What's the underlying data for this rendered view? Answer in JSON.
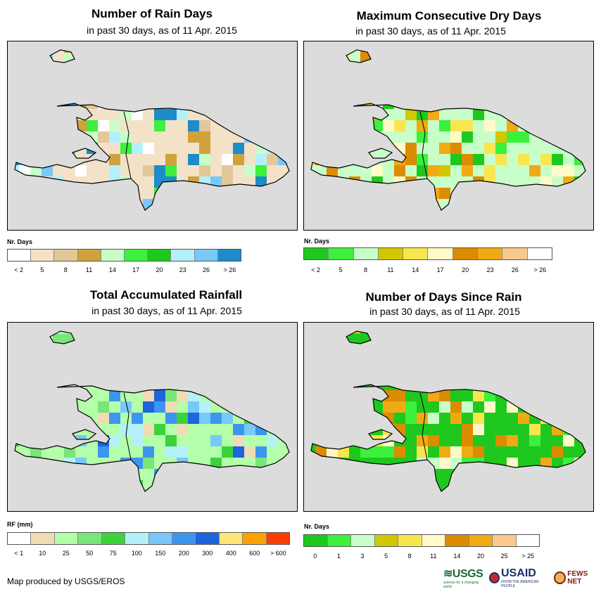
{
  "panels": [
    {
      "id": "rain-days",
      "title": "Number of Rain Days",
      "subtitle": "in past 30 days, as of 11 Apr. 2015",
      "legend_title": "Nr. Days",
      "legend_colors": [
        "#ffffff",
        "#f4e2c8",
        "#e2c898",
        "#cfa23c",
        "#c8ffc8",
        "#3cf03c",
        "#1ec81e",
        "#b4f0fa",
        "#78c8fa",
        "#1e8cc8"
      ],
      "legend_ticks": [
        "< 2",
        "5",
        "8",
        "11",
        "14",
        "17",
        "20",
        "23",
        "26",
        "> 26"
      ],
      "palette": [
        "#f4e2c8",
        "#e2c898",
        "#cfa23c",
        "#c8ffc8",
        "#3cf03c",
        "#b4f0fa",
        "#78c8fa",
        "#1e8cc8",
        "#ffffff"
      ]
    },
    {
      "id": "dry-days",
      "title": "Maximum Consecutive Dry Days",
      "subtitle": "in past 30 days, as of 11 Apr. 2015",
      "legend_title": "Nr. Days",
      "legend_colors": [
        "#1ec81e",
        "#3cf03c",
        "#c8ffc8",
        "#d2c800",
        "#f8e650",
        "#fffac8",
        "#dc8c00",
        "#f0aa14",
        "#f8c88c",
        "#ffffff"
      ],
      "legend_ticks": [
        "< 2",
        "5",
        "8",
        "11",
        "14",
        "17",
        "20",
        "23",
        "26",
        "> 26"
      ],
      "palette": [
        "#c8ffc8",
        "#3cf03c",
        "#1ec81e",
        "#d2c800",
        "#f8e650",
        "#fffac8",
        "#dc8c00",
        "#f0aa14"
      ]
    },
    {
      "id": "rainfall",
      "title": "Total Accumulated Rainfall",
      "subtitle": "in past 30 days, as of 11 Apr. 2015",
      "legend_title": "RF (mm)",
      "legend_colors": [
        "#ffffff",
        "#f0dcb4",
        "#b4ffaa",
        "#78e678",
        "#3cd23c",
        "#b4f0fa",
        "#78c8fa",
        "#3c96f0",
        "#1e64dc",
        "#ffe678",
        "#ffa000",
        "#ff3c00"
      ],
      "legend_ticks": [
        "< 1",
        "10",
        "25",
        "50",
        "75",
        "100",
        "150",
        "200",
        "300",
        "400",
        "600",
        "> 600"
      ],
      "palette": [
        "#b4ffaa",
        "#78e678",
        "#3cd23c",
        "#b4f0fa",
        "#78c8fa",
        "#3c96f0",
        "#1e64dc",
        "#f0dcb4"
      ]
    },
    {
      "id": "since-rain",
      "title": "Number of Days Since Rain",
      "subtitle": "in past 30 days, as of 11 Apr. 2015",
      "legend_title": "Nr. Days",
      "legend_colors": [
        "#1ec81e",
        "#3cf03c",
        "#c8ffc8",
        "#d2c800",
        "#f8e650",
        "#fffac8",
        "#dc8c00",
        "#f0aa14",
        "#f8c88c",
        "#ffffff"
      ],
      "legend_ticks": [
        "0",
        "1",
        "3",
        "5",
        "8",
        "11",
        "14",
        "20",
        "25",
        "> 25"
      ],
      "palette": [
        "#1ec81e",
        "#3cf03c",
        "#c8ffc8",
        "#fffac8",
        "#f8e650",
        "#dc8c00",
        "#f0aa14"
      ]
    }
  ],
  "credit": "Map produced by USGS/EROS",
  "logos": {
    "usgs": "USGS",
    "usgs_tagline": "science for a changing world",
    "usaid": "USAID",
    "usaid_tagline": "FROM THE AMERICAN PEOPLE",
    "fews": "FEWS NET"
  }
}
